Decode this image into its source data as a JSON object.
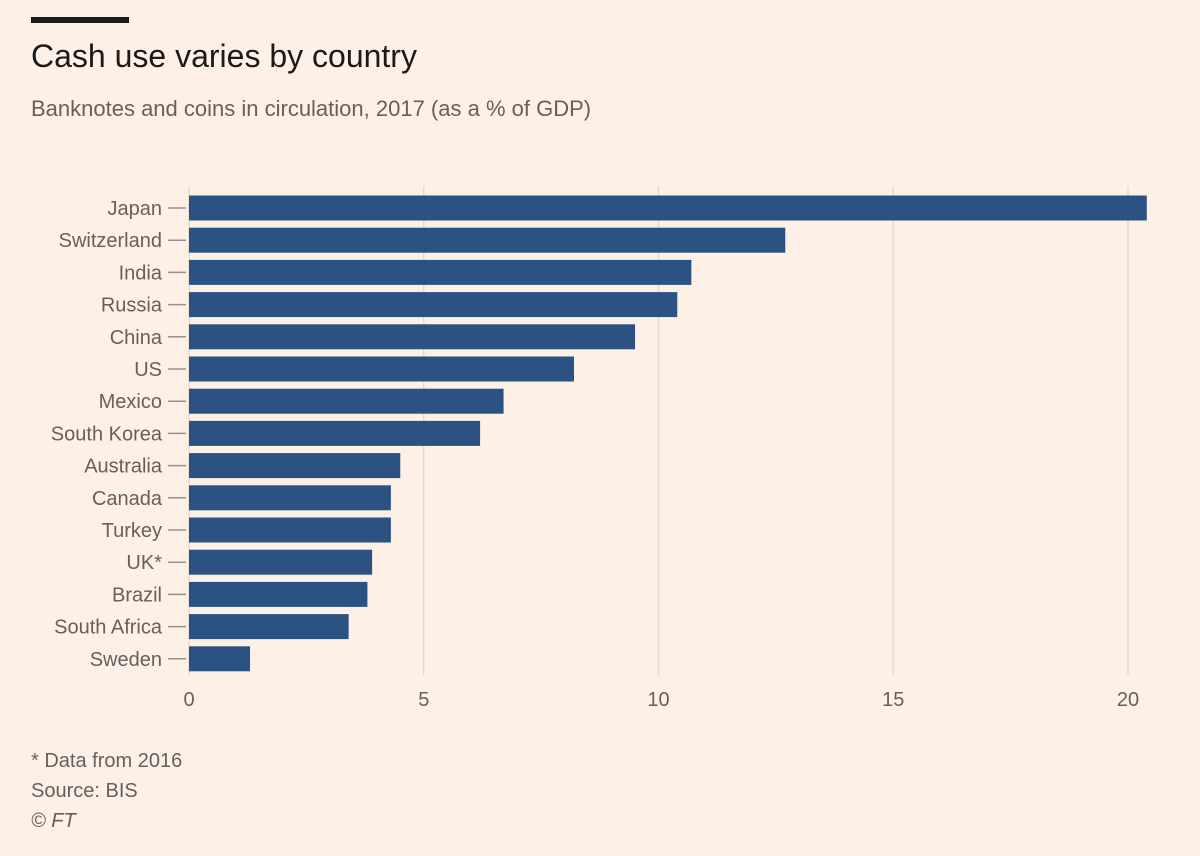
{
  "header": {
    "title": "Cash use varies by country",
    "subtitle": "Banknotes and coins in circulation, 2017 (as a % of GDP)"
  },
  "footer": {
    "note": "* Data from 2016",
    "source": "Source: BIS",
    "copyright": "© FT"
  },
  "colors": {
    "background": "#fdf1e7",
    "bar": "#2b5283",
    "grid": "#e6d9ce",
    "text": "#66605c"
  },
  "chart_data": {
    "type": "bar",
    "orientation": "horizontal",
    "title": "Cash use varies by country",
    "subtitle": "Banknotes and coins in circulation, 2017 (as a % of GDP)",
    "categories": [
      "Japan",
      "Switzerland",
      "India",
      "Russia",
      "China",
      "US",
      "Mexico",
      "South Korea",
      "Australia",
      "Canada",
      "Turkey",
      "UK*",
      "Brazil",
      "South Africa",
      "Sweden"
    ],
    "values": [
      20.4,
      12.7,
      10.7,
      10.4,
      9.5,
      8.2,
      6.7,
      6.2,
      4.5,
      4.3,
      4.3,
      3.9,
      3.8,
      3.4,
      1.3
    ],
    "xlim": [
      0,
      20
    ],
    "xticks": [
      0,
      5,
      10,
      15,
      20
    ],
    "grid": true,
    "xlabel": "",
    "ylabel": ""
  }
}
